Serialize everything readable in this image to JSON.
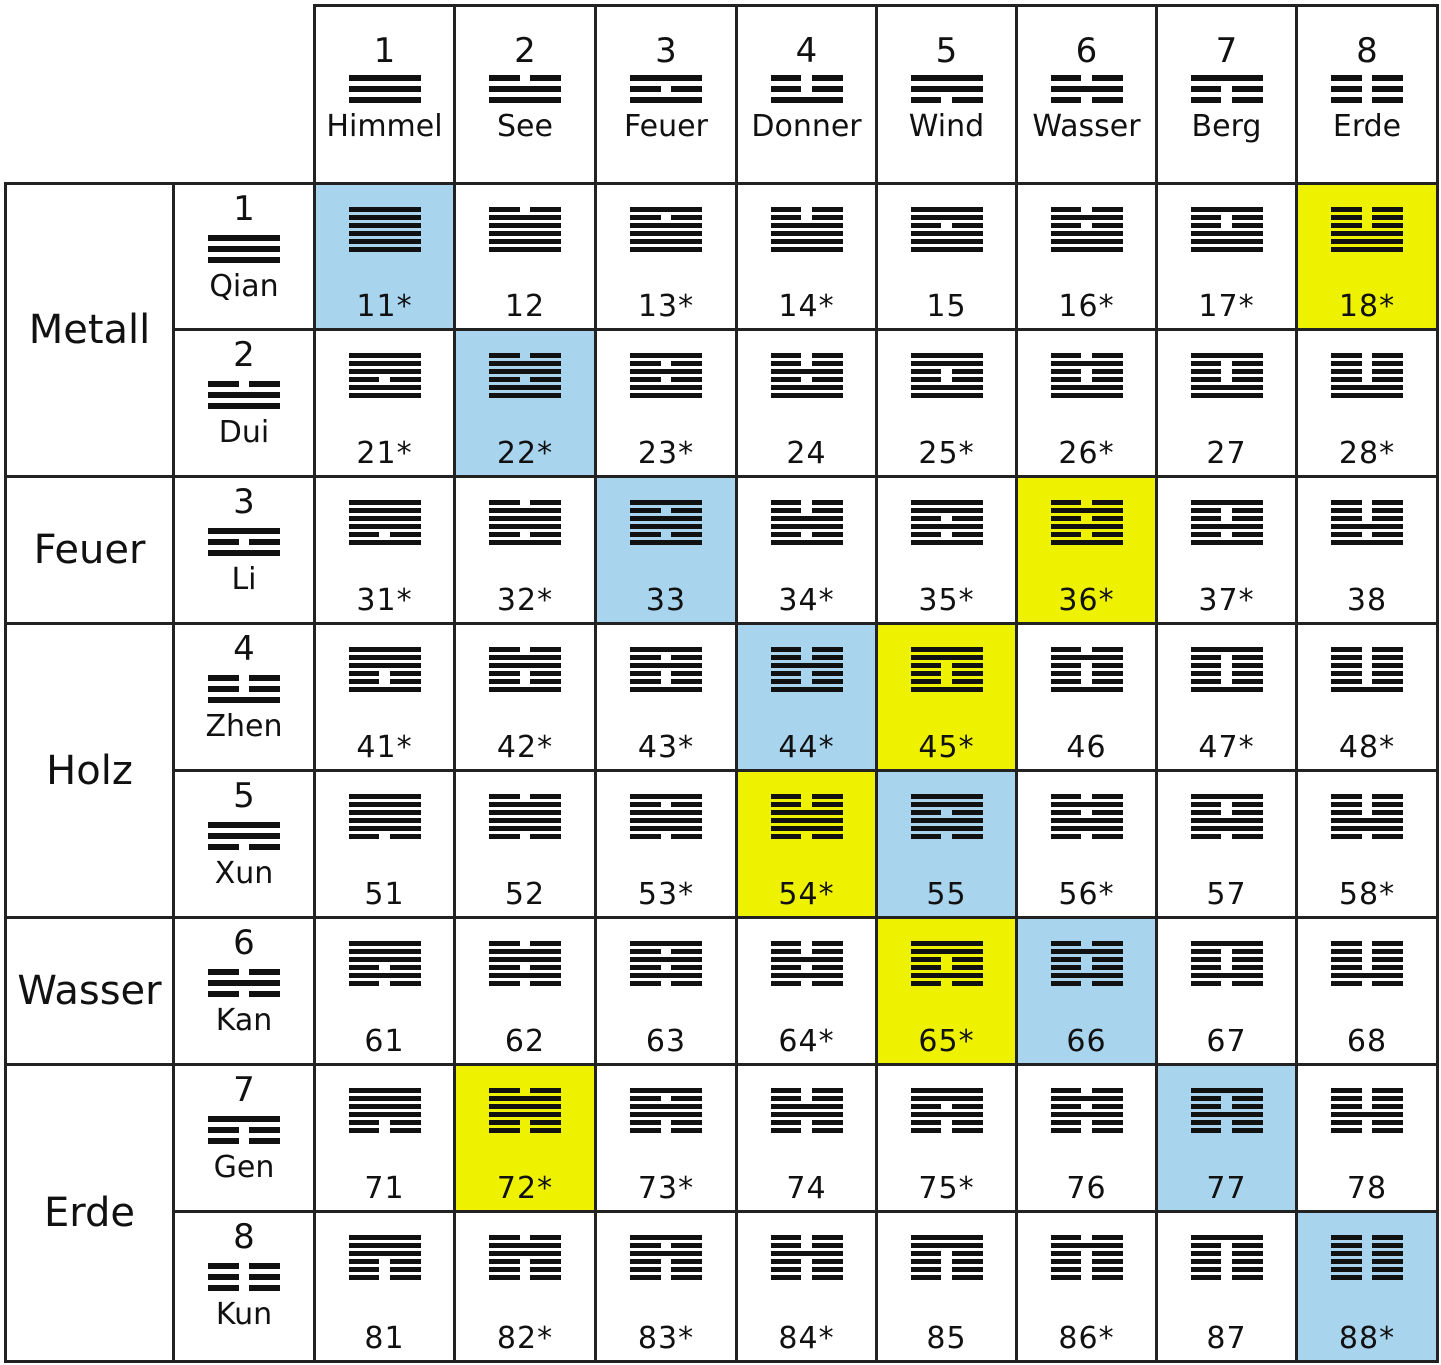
{
  "columns": [
    {
      "number": "1",
      "name": "Himmel",
      "trigram": [
        1,
        1,
        1
      ]
    },
    {
      "number": "2",
      "name": "See",
      "trigram": [
        0,
        1,
        1
      ]
    },
    {
      "number": "3",
      "name": "Feuer",
      "trigram": [
        1,
        0,
        1
      ]
    },
    {
      "number": "4",
      "name": "Donner",
      "trigram": [
        0,
        0,
        1
      ]
    },
    {
      "number": "5",
      "name": "Wind",
      "trigram": [
        1,
        1,
        0
      ]
    },
    {
      "number": "6",
      "name": "Wasser",
      "trigram": [
        0,
        1,
        0
      ]
    },
    {
      "number": "7",
      "name": "Berg",
      "trigram": [
        1,
        0,
        0
      ]
    },
    {
      "number": "8",
      "name": "Erde",
      "trigram": [
        0,
        0,
        0
      ]
    }
  ],
  "rows": [
    {
      "number": "1",
      "name": "Qian",
      "trigram": [
        1,
        1,
        1
      ]
    },
    {
      "number": "2",
      "name": "Dui",
      "trigram": [
        0,
        1,
        1
      ]
    },
    {
      "number": "3",
      "name": "Li",
      "trigram": [
        1,
        0,
        1
      ]
    },
    {
      "number": "4",
      "name": "Zhen",
      "trigram": [
        0,
        0,
        1
      ]
    },
    {
      "number": "5",
      "name": "Xun",
      "trigram": [
        1,
        1,
        0
      ]
    },
    {
      "number": "6",
      "name": "Kan",
      "trigram": [
        0,
        1,
        0
      ]
    },
    {
      "number": "7",
      "name": "Gen",
      "trigram": [
        1,
        0,
        0
      ]
    },
    {
      "number": "8",
      "name": "Kun",
      "trigram": [
        0,
        0,
        0
      ]
    }
  ],
  "elements": [
    {
      "label": "Metall",
      "rows": [
        0,
        1
      ]
    },
    {
      "label": "Feuer",
      "rows": [
        2
      ]
    },
    {
      "label": "Holz",
      "rows": [
        3,
        4
      ]
    },
    {
      "label": "Wasser",
      "rows": [
        5
      ]
    },
    {
      "label": "Erde",
      "rows": [
        6,
        7
      ]
    }
  ],
  "cells": [
    [
      "11*",
      "12",
      "13*",
      "14*",
      "15",
      "16*",
      "17*",
      "18*"
    ],
    [
      "21*",
      "22*",
      "23*",
      "24",
      "25*",
      "26*",
      "27",
      "28*"
    ],
    [
      "31*",
      "32*",
      "33",
      "34*",
      "35*",
      "36*",
      "37*",
      "38"
    ],
    [
      "41*",
      "42*",
      "43*",
      "44*",
      "45*",
      "46",
      "47*",
      "48*"
    ],
    [
      "51",
      "52",
      "53*",
      "54*",
      "55",
      "56*",
      "57",
      "58*"
    ],
    [
      "61",
      "62",
      "63",
      "64*",
      "65*",
      "66",
      "67",
      "68"
    ],
    [
      "71",
      "72*",
      "73*",
      "74",
      "75*",
      "76",
      "77",
      "78"
    ],
    [
      "81",
      "82*",
      "83*",
      "84*",
      "85",
      "86*",
      "87",
      "88*"
    ]
  ],
  "highlight": [
    [
      "blue",
      "",
      "",
      "",
      "",
      "",
      "",
      "yellow"
    ],
    [
      "",
      "blue",
      "",
      "",
      "",
      "",
      "",
      ""
    ],
    [
      "",
      "",
      "blue",
      "",
      "",
      "yellow",
      "",
      ""
    ],
    [
      "",
      "",
      "",
      "blue",
      "yellow",
      "",
      "",
      ""
    ],
    [
      "",
      "",
      "",
      "yellow",
      "blue",
      "",
      "",
      ""
    ],
    [
      "",
      "",
      "",
      "",
      "yellow",
      "blue",
      "",
      ""
    ],
    [
      "",
      "yellow",
      "",
      "",
      "",
      "",
      "blue",
      ""
    ],
    [
      "",
      "",
      "",
      "",
      "",
      "",
      "",
      "blue"
    ]
  ],
  "colors": {
    "blue": "#a8d4ee",
    "yellow": "#eef200",
    "grid": "#222222"
  }
}
